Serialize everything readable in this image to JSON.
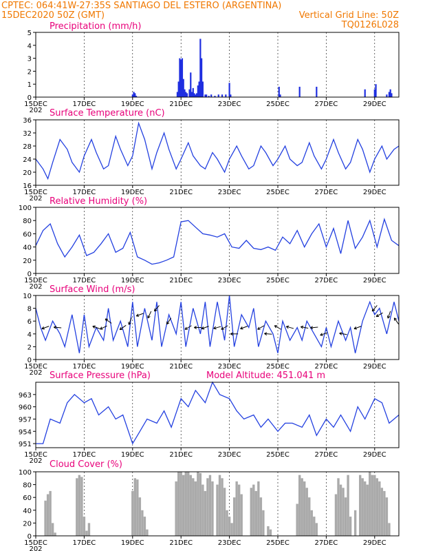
{
  "header": {
    "line1_left": "CPTEC:   064:41W-27:35S   SANTIAGO DEL ESTERO (ARGENTINA)",
    "line2_left": "15DEC2020 50Z (GMT)",
    "line2_right": "Vertical Grid Line: 50Z",
    "line3_right": "TQ0126L028"
  },
  "colors": {
    "header": "#f07800",
    "title": "#e8007a",
    "line": "#2340e0",
    "bar": "#1f2fe0",
    "cloud": "#aaaaaa"
  },
  "x_axis": {
    "tick_labels": [
      "15DEC",
      "17DEC",
      "19DEC",
      "21DEC",
      "23DEC",
      "25DEC",
      "27DEC",
      "29DEC"
    ],
    "tick_days": [
      0,
      2,
      4,
      6,
      8,
      10,
      12,
      14
    ],
    "range_days": [
      0,
      15
    ],
    "year_fragment": "202"
  },
  "chart_data": [
    {
      "type": "bar",
      "title": "Precipitation (mm/h)",
      "ylim": [
        0,
        5
      ],
      "yticks": [
        0,
        1,
        2,
        3,
        4,
        5
      ],
      "x": [
        4.0,
        4.05,
        4.1,
        4.15,
        5.85,
        5.9,
        5.95,
        6.0,
        6.05,
        6.1,
        6.15,
        6.2,
        6.25,
        6.35,
        6.4,
        6.45,
        6.5,
        6.55,
        6.6,
        6.65,
        6.7,
        6.75,
        6.8,
        6.85,
        6.9,
        7.0,
        7.05,
        7.15,
        7.25,
        7.4,
        7.55,
        7.7,
        7.85,
        8.0,
        8.05,
        10.05,
        10.1,
        10.9,
        11.6,
        13.6,
        14.0,
        14.05,
        14.5,
        14.6,
        14.65,
        14.7
      ],
      "values": [
        0.2,
        0.4,
        0.3,
        0.1,
        0.4,
        1.2,
        3.0,
        2.9,
        3.0,
        1.4,
        0.6,
        0.4,
        0.3,
        0.6,
        1.9,
        0.4,
        0.7,
        0.3,
        0.2,
        0.3,
        0.9,
        1.2,
        4.5,
        3.0,
        1.2,
        0.2,
        0.2,
        0.1,
        0.2,
        0.1,
        0.2,
        0.2,
        0.2,
        1.1,
        0.2,
        0.8,
        0.2,
        0.8,
        0.8,
        0.6,
        0.6,
        1.0,
        0.2,
        0.4,
        0.6,
        0.3
      ]
    },
    {
      "type": "line",
      "title": "Surface Temperature (nC)",
      "ylim": [
        16,
        36
      ],
      "yticks": [
        16,
        20,
        24,
        28,
        32,
        36
      ],
      "x": [
        0,
        0.3,
        0.5,
        0.7,
        1.0,
        1.3,
        1.5,
        1.8,
        2.0,
        2.3,
        2.5,
        2.8,
        3.0,
        3.3,
        3.5,
        3.8,
        4.0,
        4.25,
        4.5,
        4.8,
        5.0,
        5.3,
        5.5,
        5.8,
        6.0,
        6.3,
        6.5,
        6.8,
        7.0,
        7.3,
        7.5,
        7.8,
        8.0,
        8.3,
        8.5,
        8.8,
        9.0,
        9.3,
        9.5,
        9.8,
        10.0,
        10.3,
        10.5,
        10.8,
        11.0,
        11.3,
        11.5,
        11.8,
        12.0,
        12.3,
        12.5,
        12.8,
        13.0,
        13.3,
        13.5,
        13.8,
        14.0,
        14.3,
        14.5,
        14.8,
        15.0
      ],
      "values": [
        24,
        21,
        18,
        23,
        30,
        27,
        23,
        20,
        25,
        30,
        26,
        21,
        22,
        31,
        27,
        22,
        25,
        35,
        30,
        21,
        26,
        32,
        27,
        21,
        24,
        29,
        25,
        22,
        21,
        26,
        24,
        20,
        24,
        28,
        25,
        21,
        22,
        28,
        26,
        22,
        24,
        28,
        24,
        22,
        23,
        29,
        25,
        21,
        24,
        30,
        26,
        21,
        23,
        30,
        27,
        20,
        24,
        28,
        24,
        27,
        28
      ]
    },
    {
      "type": "line",
      "title": "Relative Humidity (%)",
      "ylim": [
        0,
        100
      ],
      "yticks": [
        0,
        20,
        40,
        60,
        80,
        100
      ],
      "x": [
        0,
        0.3,
        0.6,
        0.9,
        1.2,
        1.5,
        1.8,
        2.1,
        2.4,
        2.7,
        3.0,
        3.3,
        3.6,
        3.9,
        4.2,
        4.5,
        4.8,
        5.1,
        5.4,
        5.7,
        6.0,
        6.3,
        6.6,
        6.9,
        7.2,
        7.5,
        7.8,
        8.1,
        8.4,
        8.7,
        9.0,
        9.3,
        9.6,
        9.9,
        10.2,
        10.5,
        10.8,
        11.1,
        11.4,
        11.7,
        12.0,
        12.3,
        12.6,
        12.9,
        13.2,
        13.5,
        13.8,
        14.1,
        14.4,
        14.7,
        15.0
      ],
      "values": [
        42,
        65,
        75,
        45,
        25,
        40,
        58,
        27,
        32,
        45,
        60,
        32,
        38,
        62,
        25,
        20,
        14,
        16,
        20,
        25,
        78,
        80,
        70,
        60,
        58,
        55,
        60,
        40,
        38,
        50,
        38,
        36,
        40,
        35,
        55,
        45,
        65,
        40,
        60,
        75,
        40,
        68,
        30,
        80,
        38,
        55,
        80,
        40,
        82,
        50,
        42
      ]
    },
    {
      "type": "line",
      "title": "Surface Wind (m/s)",
      "ylim": [
        0,
        10
      ],
      "yticks": [
        0,
        2,
        4,
        6,
        8,
        10
      ],
      "x": [
        0,
        0.2,
        0.4,
        0.7,
        1.0,
        1.2,
        1.5,
        1.8,
        2.0,
        2.2,
        2.5,
        2.8,
        3.0,
        3.2,
        3.5,
        3.8,
        4.0,
        4.2,
        4.5,
        4.8,
        5.0,
        5.2,
        5.5,
        5.8,
        6.0,
        6.2,
        6.5,
        6.8,
        7.0,
        7.2,
        7.5,
        7.8,
        8.0,
        8.2,
        8.5,
        8.8,
        9.0,
        9.2,
        9.5,
        9.8,
        10.0,
        10.2,
        10.5,
        10.8,
        11.0,
        11.2,
        11.5,
        11.8,
        12.0,
        12.2,
        12.5,
        12.8,
        13.0,
        13.2,
        13.5,
        13.8,
        14.0,
        14.2,
        14.5,
        14.8,
        15.0
      ],
      "values": [
        8,
        5,
        3,
        6,
        4,
        2,
        7,
        1,
        7,
        2,
        5,
        3,
        8,
        3,
        6,
        2,
        9,
        2,
        8,
        3,
        9,
        2,
        7,
        4,
        9,
        2,
        8,
        4,
        9,
        2,
        9,
        3,
        10,
        2,
        7,
        5,
        8,
        2,
        6,
        4,
        1,
        6,
        3,
        5,
        3,
        6,
        4,
        2,
        5,
        2,
        6,
        3,
        5,
        1,
        6,
        9,
        7,
        8,
        4,
        9,
        6
      ]
    },
    {
      "type": "line",
      "title": "Surface Pressure (hPa)",
      "annotation": "Model Altitude: 451.041 m",
      "ylim": [
        950,
        966
      ],
      "yticks": [
        951,
        954,
        957,
        960,
        963
      ],
      "x": [
        0,
        0.3,
        0.6,
        1.0,
        1.3,
        1.6,
        2.0,
        2.3,
        2.6,
        3.0,
        3.3,
        3.6,
        4.0,
        4.3,
        4.6,
        5.0,
        5.3,
        5.6,
        6.0,
        6.3,
        6.6,
        7.0,
        7.3,
        7.6,
        8.0,
        8.3,
        8.6,
        9.0,
        9.3,
        9.6,
        10.0,
        10.3,
        10.6,
        11.0,
        11.3,
        11.6,
        12.0,
        12.3,
        12.6,
        13.0,
        13.3,
        13.6,
        14.0,
        14.3,
        14.6,
        15.0
      ],
      "values": [
        951,
        951,
        957,
        956,
        961,
        963,
        961,
        962,
        958,
        960,
        957,
        958,
        951,
        954,
        957,
        956,
        959,
        955,
        962,
        960,
        964,
        961,
        966,
        963,
        962,
        959,
        957,
        958,
        955,
        957,
        954,
        956,
        956,
        955,
        958,
        953,
        957,
        955,
        958,
        954,
        960,
        957,
        962,
        961,
        956,
        958
      ]
    },
    {
      "type": "bar",
      "title": "Cloud Cover (%)",
      "ylim": [
        0,
        100
      ],
      "yticks": [
        0,
        20,
        40,
        60,
        80,
        100
      ],
      "x": [
        0.4,
        0.5,
        0.6,
        0.7,
        0.8,
        1.7,
        1.8,
        1.9,
        2.0,
        2.1,
        2.2,
        4.0,
        4.1,
        4.2,
        4.3,
        4.4,
        4.5,
        4.6,
        5.8,
        5.9,
        6.0,
        6.1,
        6.2,
        6.3,
        6.4,
        6.5,
        6.6,
        6.7,
        6.8,
        6.9,
        7.0,
        7.1,
        7.2,
        7.3,
        7.5,
        7.6,
        7.7,
        7.8,
        7.9,
        8.0,
        8.1,
        8.2,
        8.3,
        8.4,
        8.5,
        8.9,
        9.0,
        9.1,
        9.2,
        9.3,
        9.4,
        9.6,
        9.7,
        10.8,
        10.9,
        11.0,
        11.1,
        11.2,
        11.3,
        11.4,
        11.5,
        11.6,
        12.4,
        12.5,
        12.6,
        12.7,
        12.8,
        12.9,
        13.0,
        13.2,
        13.4,
        13.5,
        13.6,
        13.7,
        13.8,
        13.9,
        14.0,
        14.1,
        14.2,
        14.3,
        14.4,
        14.5,
        14.6
      ],
      "values": [
        55,
        65,
        70,
        20,
        5,
        90,
        95,
        92,
        30,
        8,
        20,
        70,
        90,
        88,
        60,
        40,
        30,
        10,
        85,
        100,
        100,
        95,
        100,
        100,
        95,
        90,
        85,
        100,
        98,
        80,
        70,
        90,
        95,
        85,
        80,
        95,
        90,
        75,
        40,
        30,
        20,
        60,
        85,
        80,
        65,
        75,
        80,
        70,
        85,
        60,
        40,
        15,
        10,
        50,
        95,
        90,
        85,
        75,
        60,
        40,
        30,
        20,
        65,
        90,
        80,
        75,
        60,
        95,
        30,
        40,
        95,
        90,
        85,
        80,
        100,
        95,
        95,
        90,
        85,
        75,
        70,
        60,
        20
      ]
    }
  ],
  "wind_arrows": [
    {
      "day": 0.4,
      "speed": 5,
      "angle": 200
    },
    {
      "day": 0.9,
      "speed": 5,
      "angle": 175
    },
    {
      "day": 2.5,
      "speed": 5,
      "angle": 160
    },
    {
      "day": 2.8,
      "speed": 5,
      "angle": 205
    },
    {
      "day": 3.0,
      "speed": 6,
      "angle": 145
    },
    {
      "day": 3.6,
      "speed": 5,
      "angle": 215
    },
    {
      "day": 3.9,
      "speed": 6,
      "angle": 250
    },
    {
      "day": 4.3,
      "speed": 7,
      "angle": 200
    },
    {
      "day": 4.7,
      "speed": 7,
      "angle": 245
    },
    {
      "day": 5.0,
      "speed": 8,
      "angle": 230
    },
    {
      "day": 5.5,
      "speed": 6,
      "angle": 235
    },
    {
      "day": 6.3,
      "speed": 5,
      "angle": 210
    },
    {
      "day": 6.7,
      "speed": 5,
      "angle": 180
    },
    {
      "day": 7.0,
      "speed": 5,
      "angle": 200
    },
    {
      "day": 7.5,
      "speed": 5,
      "angle": 195
    },
    {
      "day": 7.8,
      "speed": 5,
      "angle": 210
    },
    {
      "day": 8.2,
      "speed": 4,
      "angle": 180
    },
    {
      "day": 8.6,
      "speed": 5,
      "angle": 200
    },
    {
      "day": 9.3,
      "speed": 5,
      "angle": 210
    },
    {
      "day": 9.6,
      "speed": 4,
      "angle": 175
    },
    {
      "day": 10.0,
      "speed": 5,
      "angle": 150
    },
    {
      "day": 10.5,
      "speed": 5,
      "angle": 165
    },
    {
      "day": 11.1,
      "speed": 5,
      "angle": 170
    },
    {
      "day": 11.5,
      "speed": 5,
      "angle": 185
    },
    {
      "day": 11.9,
      "speed": 4,
      "angle": 200
    },
    {
      "day": 12.7,
      "speed": 4,
      "angle": 170
    },
    {
      "day": 13.3,
      "speed": 5,
      "angle": 200
    },
    {
      "day": 14.0,
      "speed": 8,
      "angle": 230
    },
    {
      "day": 14.2,
      "speed": 7,
      "angle": 210
    },
    {
      "day": 14.6,
      "speed": 7,
      "angle": 250
    },
    {
      "day": 14.9,
      "speed": 6,
      "angle": 125
    }
  ]
}
